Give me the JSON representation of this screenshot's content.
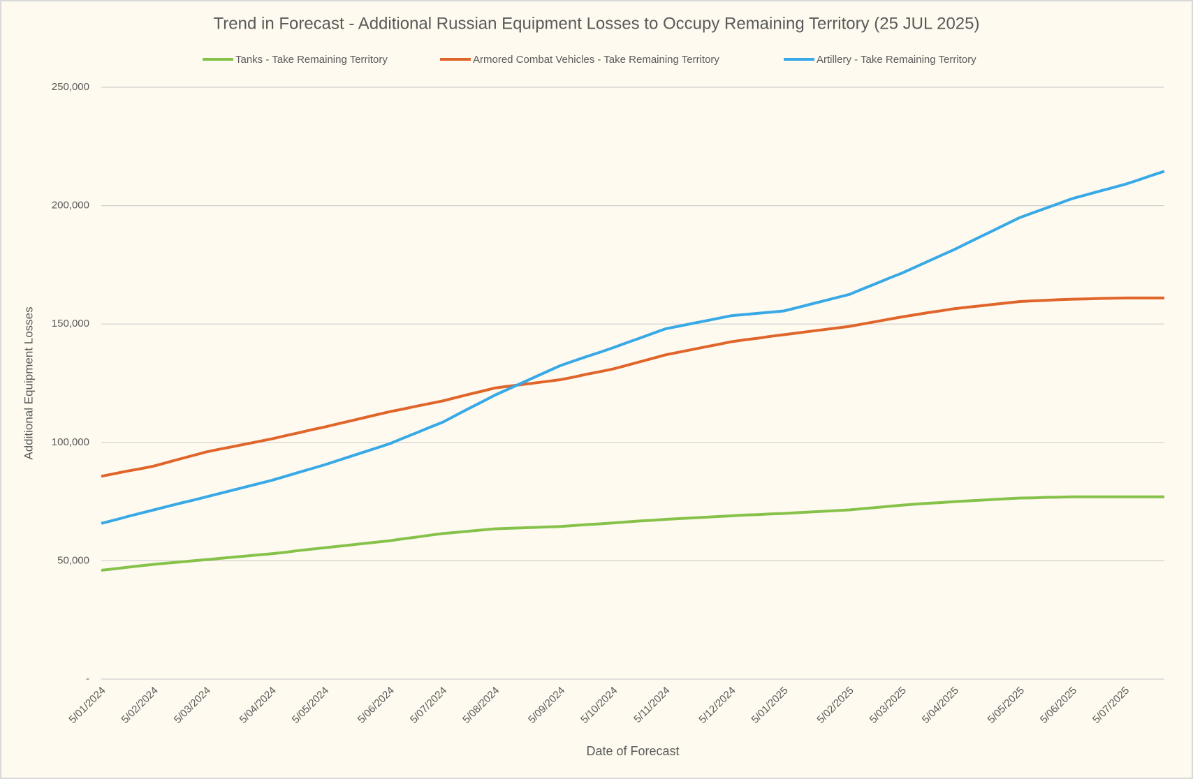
{
  "chart_data": {
    "type": "line",
    "title": "Trend in Forecast - Additional Russian Equipment Losses to Occupy Remaining Territory (25 JUL 2025)",
    "x_label": "Date of Forecast",
    "y_label": "Additional Equipment Losses",
    "categories": [
      "5/01/2024",
      null,
      null,
      null,
      "5/02/2024",
      null,
      null,
      null,
      "5/03/2024",
      null,
      null,
      null,
      null,
      "5/04/2024",
      null,
      null,
      null,
      "5/05/2024",
      null,
      null,
      null,
      null,
      "5/06/2024",
      null,
      null,
      null,
      "5/07/2024",
      null,
      null,
      null,
      "5/08/2024",
      null,
      null,
      null,
      null,
      "5/09/2024",
      null,
      null,
      null,
      "5/10/2024",
      null,
      null,
      null,
      "5/11/2024",
      null,
      null,
      null,
      null,
      "5/12/2024",
      null,
      null,
      null,
      "5/01/2025",
      null,
      null,
      null,
      null,
      "5/02/2025",
      null,
      null,
      null,
      "5/03/2025",
      null,
      null,
      null,
      "5/04/2025",
      null,
      null,
      null,
      null,
      "5/05/2025",
      null,
      null,
      null,
      "5/06/2025",
      null,
      null,
      null,
      "5/07/2025",
      null,
      null,
      null
    ],
    "series": [
      {
        "name": "Tanks - Take Remaining Territory",
        "color": "#86c24a",
        "values": [
          46000,
          46600,
          47300,
          47900,
          48500,
          49000,
          49500,
          50000,
          50500,
          51000,
          51500,
          52000,
          52500,
          53000,
          53600,
          54300,
          54900,
          55500,
          56100,
          56700,
          57300,
          57900,
          58500,
          59300,
          60000,
          60800,
          61500,
          62000,
          62500,
          63000,
          63500,
          63700,
          63900,
          64100,
          64300,
          64500,
          64900,
          65300,
          65600,
          66000,
          66400,
          66800,
          67100,
          67500,
          67800,
          68100,
          68400,
          68700,
          69000,
          69300,
          69500,
          69800,
          70000,
          70300,
          70600,
          70900,
          71200,
          71500,
          72000,
          72500,
          73000,
          73500,
          73900,
          74300,
          74600,
          75000,
          75300,
          75600,
          75900,
          76200,
          76500,
          76600,
          76800,
          76900,
          77000,
          77000,
          77000,
          77000,
          77000,
          77000,
          77000,
          77000
        ]
      },
      {
        "name": "Armored Combat Vehicles - Take Remaining Territory",
        "color": "#e0652a",
        "values": [
          85700,
          86800,
          87900,
          88900,
          90000,
          91500,
          93000,
          94500,
          96000,
          97100,
          98200,
          99300,
          100400,
          101500,
          102800,
          104000,
          105300,
          106500,
          107800,
          109100,
          110400,
          111700,
          113000,
          114100,
          115300,
          116400,
          117500,
          118900,
          120300,
          121600,
          123000,
          123700,
          124400,
          125100,
          125800,
          126500,
          127600,
          128800,
          129900,
          131000,
          132500,
          134000,
          135500,
          137000,
          138100,
          139200,
          140300,
          141400,
          142500,
          143300,
          144000,
          144800,
          145500,
          146200,
          146900,
          147600,
          148300,
          149000,
          150000,
          151000,
          152000,
          153000,
          153900,
          154800,
          155600,
          156500,
          157100,
          157700,
          158300,
          158900,
          159500,
          159800,
          160000,
          160300,
          160500,
          160600,
          160800,
          160900,
          161000,
          161000,
          161000,
          161000
        ]
      },
      {
        "name": "Artillery - Take Remaining Territory",
        "color": "#38a9e6",
        "values": [
          65800,
          67200,
          68700,
          70100,
          71500,
          72900,
          74300,
          75600,
          77000,
          78400,
          79800,
          81200,
          82600,
          84000,
          85600,
          87300,
          88900,
          90500,
          92300,
          94100,
          95900,
          97700,
          99500,
          101800,
          104000,
          106300,
          108500,
          111400,
          114300,
          117100,
          120000,
          122500,
          125000,
          127500,
          130000,
          132500,
          134400,
          136300,
          138100,
          140000,
          142000,
          144000,
          146000,
          148000,
          149100,
          150200,
          151300,
          152400,
          153500,
          154000,
          154500,
          155000,
          155500,
          156900,
          158300,
          159700,
          161100,
          162500,
          164800,
          167000,
          169300,
          171500,
          174000,
          176500,
          179000,
          181500,
          184200,
          186900,
          189600,
          192300,
          195000,
          197000,
          199000,
          201000,
          203000,
          204500,
          206000,
          207500,
          209000,
          210800,
          212700,
          214500
        ]
      }
    ],
    "ylim": [
      0,
      250000
    ],
    "yticks": [
      {
        "value": 0,
        "label": "-"
      },
      {
        "value": 50000,
        "label": "50,000"
      },
      {
        "value": 100000,
        "label": "100,000"
      },
      {
        "value": 150000,
        "label": "150,000"
      },
      {
        "value": 200000,
        "label": "200,000"
      },
      {
        "value": 250000,
        "label": "250,000"
      }
    ],
    "grid": true
  }
}
